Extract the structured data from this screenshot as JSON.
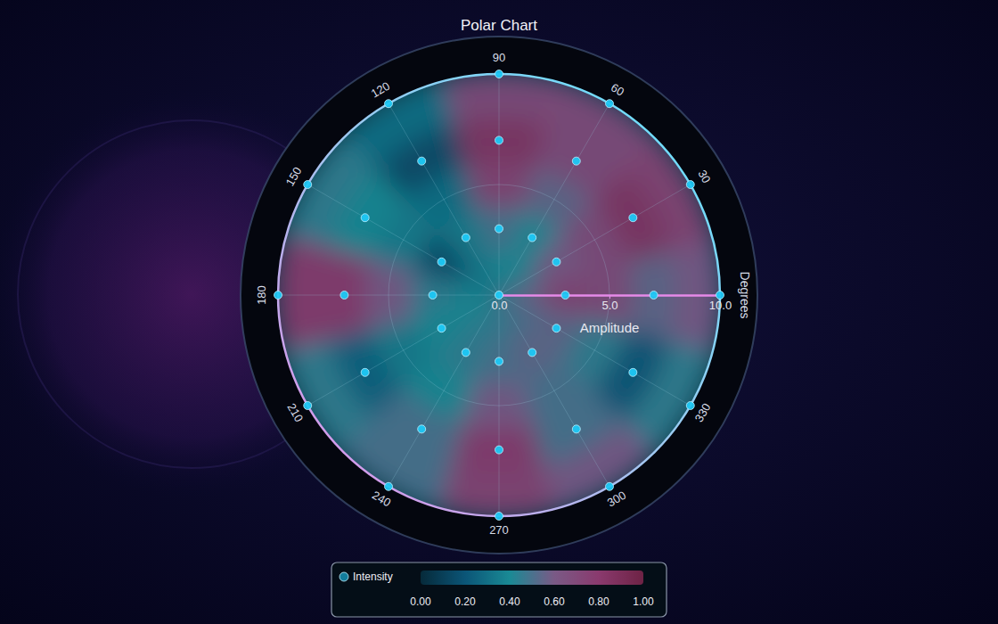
{
  "chart_data": {
    "type": "polar",
    "title": "Polar Chart",
    "x_label": "Degrees",
    "y_label": "Amplitude",
    "xlim": [
      0,
      360
    ],
    "xticks": [
      30,
      60,
      90,
      120,
      150,
      180,
      210,
      240,
      270,
      300,
      330
    ],
    "ylim": [
      0,
      10
    ],
    "yticks": [
      {
        "value": 0,
        "label": "0.0"
      },
      {
        "value": 5,
        "label": "5.0"
      },
      {
        "value": 10,
        "label": "10.0"
      }
    ],
    "grid": true,
    "series": [
      {
        "name": "Intensity",
        "color": "#1ec8f5",
        "marker": "circle",
        "theta": [
          0,
          0,
          0,
          0,
          30,
          30,
          30,
          60,
          60,
          60,
          90,
          90,
          90,
          120,
          120,
          120,
          150,
          150,
          150,
          180,
          180,
          180,
          210,
          210,
          210,
          240,
          240,
          240,
          270,
          270,
          270,
          300,
          300,
          300,
          330,
          330,
          330
        ],
        "r": [
          0,
          3,
          7,
          10,
          3,
          7,
          10,
          3,
          7,
          10,
          3,
          7,
          10,
          3,
          7,
          10,
          3,
          7,
          10,
          3,
          7,
          10,
          3,
          7,
          10,
          3,
          7,
          10,
          3,
          7,
          10,
          3,
          7,
          10,
          3,
          7,
          10
        ]
      }
    ],
    "heatmap": {
      "angles": [
        0,
        30,
        60,
        90,
        120,
        150,
        180,
        210,
        240,
        270,
        300,
        330
      ],
      "radii": [
        1,
        3,
        5,
        7,
        9
      ],
      "values": [
        [
          0.6,
          0.75,
          0.7,
          0.55,
          0.6
        ],
        [
          0.45,
          0.6,
          0.7,
          0.85,
          0.75
        ],
        [
          0.4,
          0.4,
          0.55,
          0.7,
          0.7
        ],
        [
          0.4,
          0.5,
          0.75,
          0.85,
          0.7
        ],
        [
          0.35,
          0.35,
          0.3,
          0.15,
          0.3
        ],
        [
          0.3,
          0.15,
          0.35,
          0.4,
          0.45
        ],
        [
          0.4,
          0.45,
          0.6,
          0.8,
          0.8
        ],
        [
          0.4,
          0.4,
          0.35,
          0.25,
          0.45
        ],
        [
          0.45,
          0.45,
          0.4,
          0.5,
          0.5
        ],
        [
          0.45,
          0.5,
          0.6,
          0.8,
          0.75
        ],
        [
          0.5,
          0.55,
          0.5,
          0.5,
          0.6
        ],
        [
          0.5,
          0.55,
          0.45,
          0.2,
          0.45
        ]
      ]
    },
    "colorbar": {
      "range": [
        0,
        1
      ],
      "ticks": [
        {
          "value": 0,
          "label": "0.00"
        },
        {
          "value": 0.2,
          "label": "0.20"
        },
        {
          "value": 0.4,
          "label": "0.40"
        },
        {
          "value": 0.6,
          "label": "0.60"
        },
        {
          "value": 0.8,
          "label": "0.80"
        },
        {
          "value": 1,
          "label": "1.00"
        }
      ]
    }
  }
}
